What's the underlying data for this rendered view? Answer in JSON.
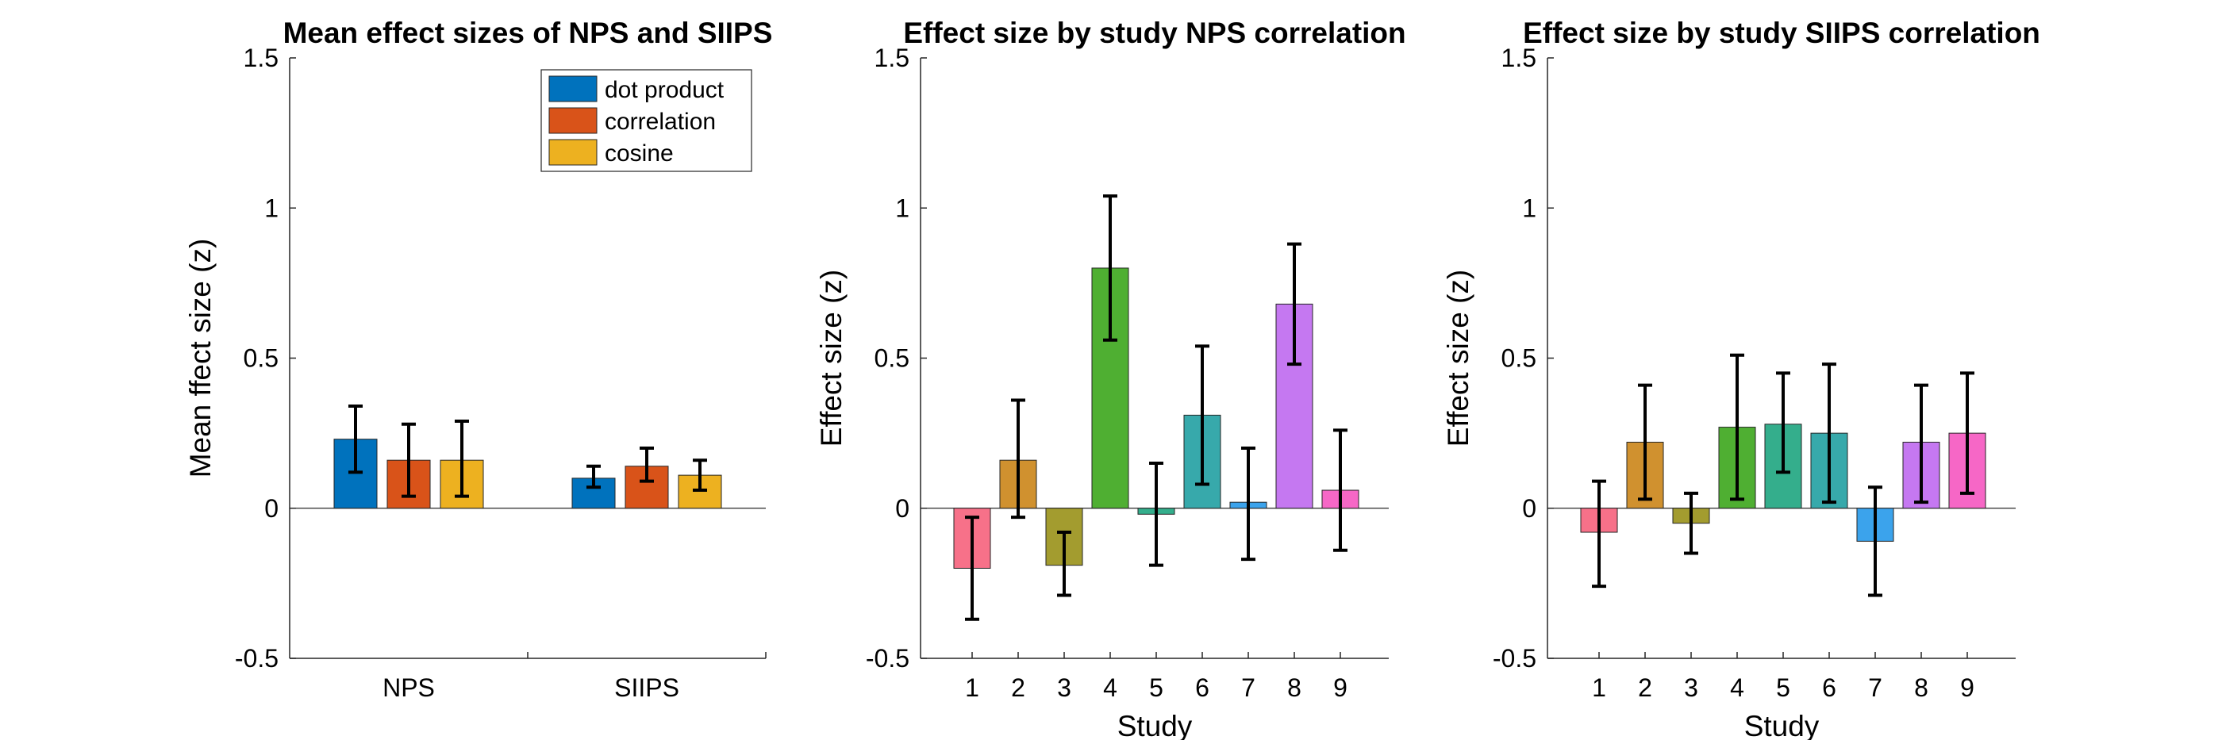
{
  "chart_data": [
    {
      "type": "bar",
      "title": "Mean effect sizes of NPS and SIIPS",
      "xlabel": "",
      "ylabel": "Mean ffect size (z)",
      "ylim": [
        -0.5,
        1.5
      ],
      "yticks": [
        "-0.5",
        "0",
        "0.5",
        "1",
        "1.5"
      ],
      "categories": [
        "NPS",
        "SIIPS"
      ],
      "legend_position": "top-right",
      "series": [
        {
          "name": "dot product",
          "color": "#0072BD",
          "values": [
            0.23,
            0.1
          ],
          "err_low": [
            0.12,
            0.07
          ],
          "err_high": [
            0.34,
            0.14
          ]
        },
        {
          "name": "correlation",
          "color": "#D95319",
          "values": [
            0.16,
            0.14
          ],
          "err_low": [
            0.04,
            0.09
          ],
          "err_high": [
            0.28,
            0.2
          ]
        },
        {
          "name": "cosine",
          "color": "#EDB120",
          "values": [
            0.16,
            0.11
          ],
          "err_low": [
            0.04,
            0.06
          ],
          "err_high": [
            0.29,
            0.16
          ]
        }
      ]
    },
    {
      "type": "bar",
      "title": "Effect size by study NPS correlation",
      "xlabel": "Study",
      "ylabel": "Effect size (z)",
      "ylim": [
        -0.5,
        1.5
      ],
      "yticks": [
        "-0.5",
        "0",
        "0.5",
        "1",
        "1.5"
      ],
      "categories": [
        "1",
        "2",
        "3",
        "4",
        "5",
        "6",
        "7",
        "8",
        "9"
      ],
      "colors": [
        "#F77189",
        "#D0912F",
        "#A39C2F",
        "#4FAF32",
        "#34AE8C",
        "#37A9AB",
        "#3BA3EC",
        "#C578F1",
        "#F667C6"
      ],
      "values": [
        -0.2,
        0.16,
        -0.19,
        0.8,
        -0.02,
        0.31,
        0.02,
        0.68,
        0.06
      ],
      "err_low": [
        -0.37,
        -0.03,
        -0.29,
        0.56,
        -0.19,
        0.08,
        -0.17,
        0.48,
        -0.14
      ],
      "err_high": [
        -0.03,
        0.36,
        -0.08,
        1.04,
        0.15,
        0.54,
        0.2,
        0.88,
        0.26
      ]
    },
    {
      "type": "bar",
      "title": "Effect size by study SIIPS correlation",
      "xlabel": "Study",
      "ylabel": "Effect size (z)",
      "ylim": [
        -0.5,
        1.5
      ],
      "yticks": [
        "-0.5",
        "0",
        "0.5",
        "1",
        "1.5"
      ],
      "categories": [
        "1",
        "2",
        "3",
        "4",
        "5",
        "6",
        "7",
        "8",
        "9"
      ],
      "colors": [
        "#F77189",
        "#D0912F",
        "#A39C2F",
        "#4FAF32",
        "#34AE8C",
        "#37A9AB",
        "#3BA3EC",
        "#C578F1",
        "#F667C6"
      ],
      "values": [
        -0.08,
        0.22,
        -0.05,
        0.27,
        0.28,
        0.25,
        -0.11,
        0.22,
        0.25
      ],
      "err_low": [
        -0.26,
        0.03,
        -0.15,
        0.03,
        0.12,
        0.02,
        -0.29,
        0.02,
        0.05
      ],
      "err_high": [
        0.09,
        0.41,
        0.05,
        0.51,
        0.45,
        0.48,
        0.07,
        0.41,
        0.45
      ]
    }
  ]
}
